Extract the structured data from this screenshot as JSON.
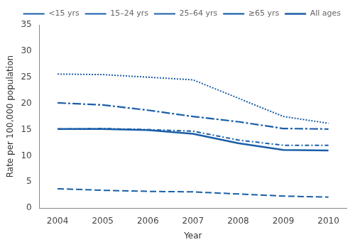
{
  "chart_data": {
    "type": "line",
    "x": [
      2004,
      2005,
      2006,
      2007,
      2008,
      2009,
      2010
    ],
    "series": [
      {
        "name": "<15 yrs",
        "color": "#1a5ea8",
        "line_style": "dashed",
        "values": [
          3.7,
          3.4,
          3.2,
          3.1,
          2.7,
          2.3,
          2.1
        ]
      },
      {
        "name": "15–24 yrs",
        "color": "#1a5ea8",
        "line_style": "dotted",
        "values": [
          25.6,
          25.5,
          25.0,
          24.5,
          21.0,
          17.5,
          16.2
        ]
      },
      {
        "name": "25–64 yrs",
        "color": "#1a5ea8",
        "line_style": "dashdot",
        "values": [
          15.1,
          15.2,
          15.0,
          14.7,
          13.0,
          12.0,
          12.0
        ]
      },
      {
        "name": "≥65 yrs",
        "color": "#1a5ea8",
        "line_style": "longdashdot",
        "values": [
          20.1,
          19.7,
          18.7,
          17.5,
          16.5,
          15.2,
          15.1
        ]
      },
      {
        "name": "All ages",
        "color": "#1a5ea8",
        "line_style": "solid",
        "values": [
          15.1,
          15.1,
          14.9,
          14.2,
          12.4,
          11.1,
          11.0
        ]
      }
    ],
    "xlim": [
      2003.6,
      2010.4
    ],
    "xticks": [
      2004,
      2005,
      2006,
      2007,
      2008,
      2009,
      2010
    ],
    "ylim": [
      0,
      35
    ],
    "yticks": [
      0,
      5,
      10,
      15,
      20,
      25,
      30,
      35
    ],
    "xlabel": "Year",
    "ylabel": "Rate per 100,000 population",
    "grid": false,
    "legend": "upper right"
  }
}
